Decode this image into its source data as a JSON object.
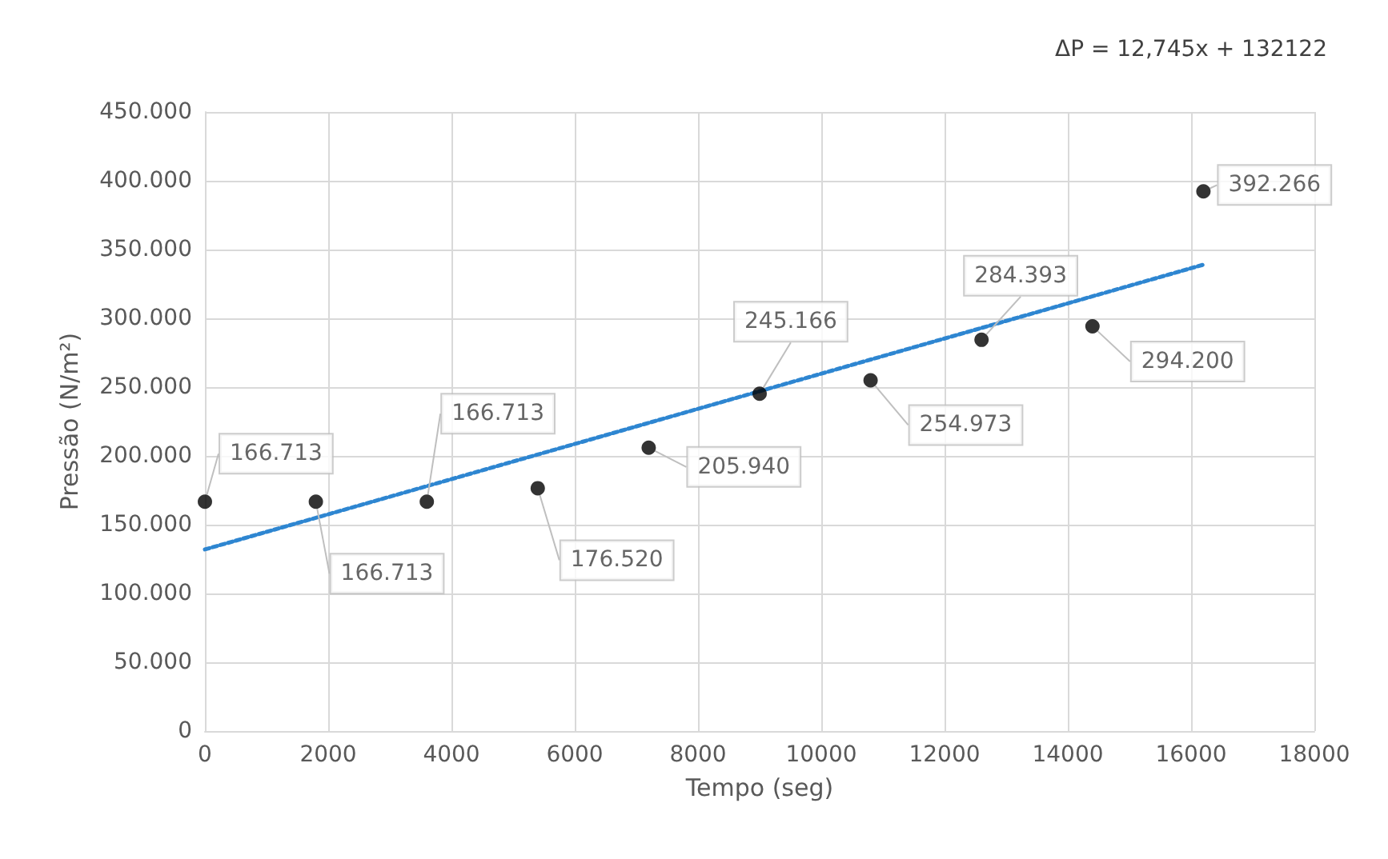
{
  "chart_data": {
    "type": "scatter",
    "xlabel": "Tempo (seg)",
    "ylabel": "Pressão (N/m²)",
    "annotations": [
      "ΔP = 12,745x + 132122"
    ],
    "xlim": [
      0,
      18000
    ],
    "xticks": [
      0,
      2000,
      4000,
      6000,
      8000,
      10000,
      12000,
      14000,
      16000,
      18000
    ],
    "ylim": [
      0,
      450000
    ],
    "yticks": [
      {
        "value": 0,
        "label": "0"
      },
      {
        "value": 50000,
        "label": "50.000"
      },
      {
        "value": 100000,
        "label": "100.000"
      },
      {
        "value": 150000,
        "label": "150.000"
      },
      {
        "value": 200000,
        "label": "200.000"
      },
      {
        "value": 250000,
        "label": "250.000"
      },
      {
        "value": 300000,
        "label": "300.000"
      },
      {
        "value": 350000,
        "label": "350.000"
      },
      {
        "value": 400000,
        "label": "400.000"
      },
      {
        "value": 450000,
        "label": "450.000"
      }
    ],
    "grid": true,
    "marker": "circle",
    "series": [
      {
        "color": "#000000",
        "x": [
          0,
          1800,
          3600,
          5400,
          7200,
          9000,
          10800,
          12600,
          14400,
          16200
        ],
        "values": [
          166713,
          166713,
          166713,
          176520,
          205940,
          245166,
          254973,
          284393,
          294200,
          392266
        ],
        "value_labels": [
          "166.713",
          "166.713",
          "166.713",
          "176.520",
          "205.940",
          "245.166",
          "254.973",
          "284.393",
          "294.200",
          "392.266"
        ]
      },
      {
        "type": "line",
        "color": "#2e86d1",
        "line_style": "dotted",
        "marker": "none",
        "x": [
          0,
          16200
        ],
        "values": [
          132000,
          339000
        ]
      }
    ]
  }
}
